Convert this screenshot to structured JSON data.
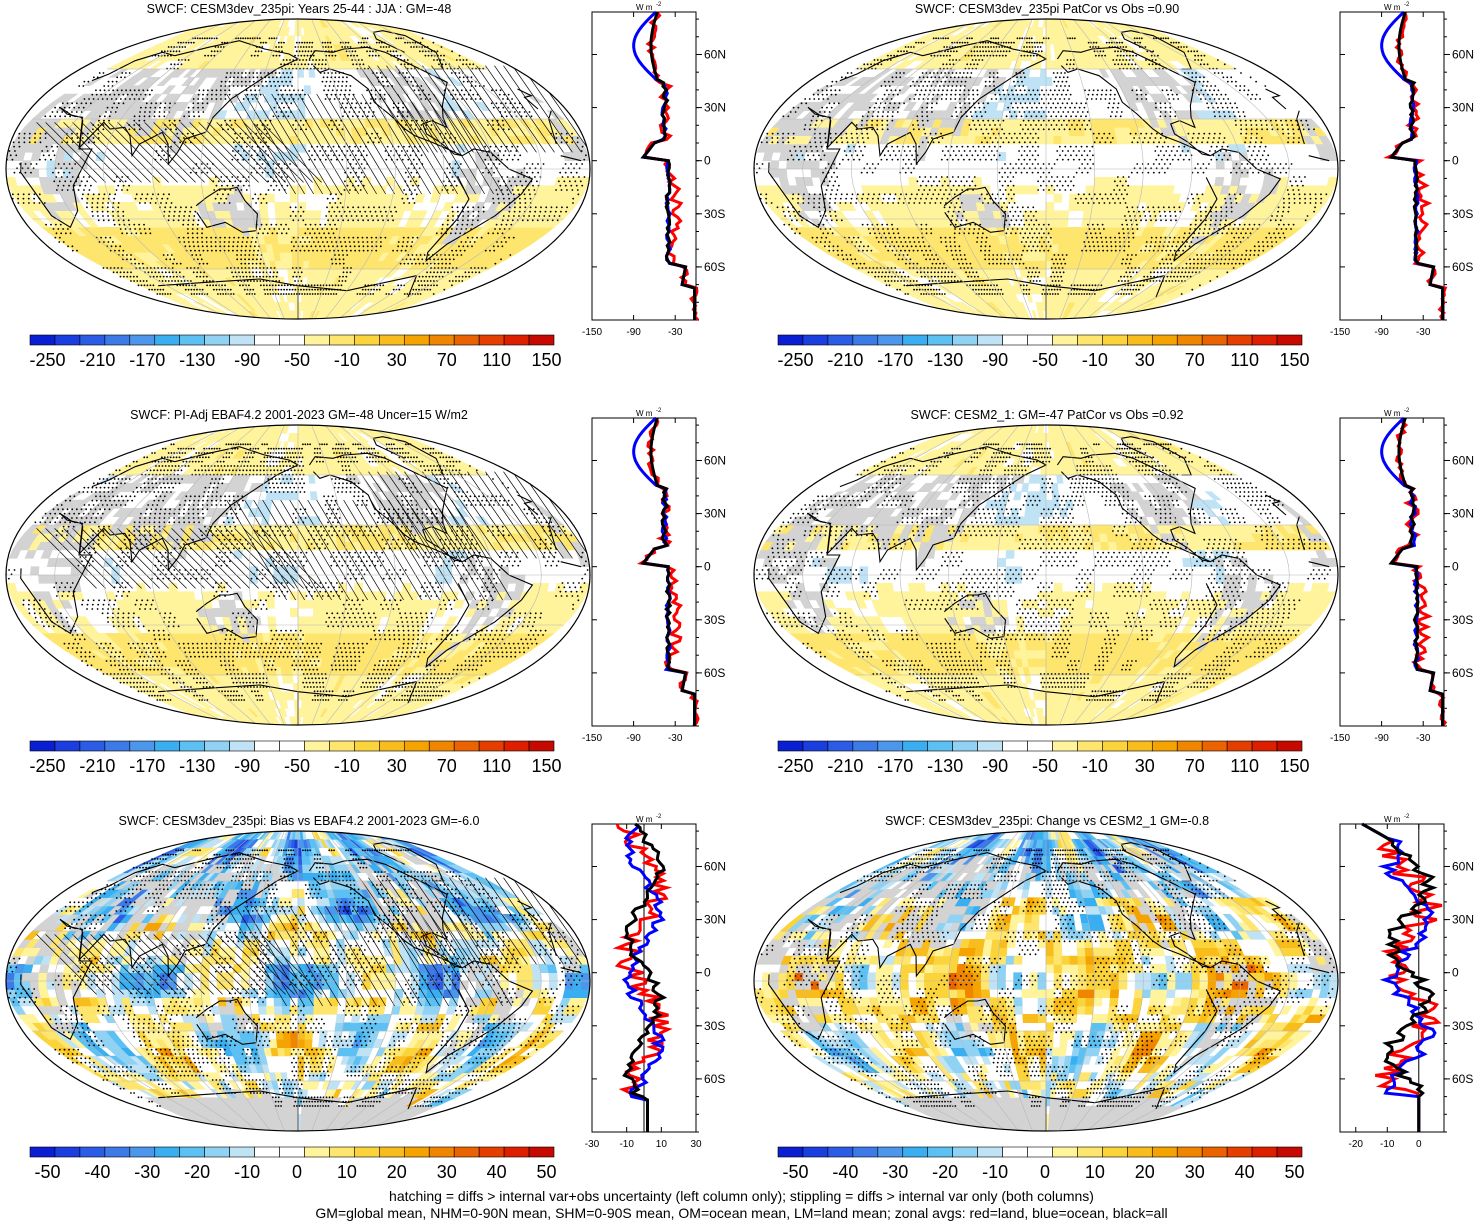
{
  "panels": [
    {
      "title": "SWCF: CESM3dev_235pi: Years 25-44 : JJA : GM=-48",
      "type": "abs",
      "hatch": true,
      "col": 0,
      "row": 0
    },
    {
      "title": "SWCF: CESM3dev_235pi PatCor vs Obs =0.90",
      "type": "abs",
      "hatch": false,
      "col": 1,
      "row": 0
    },
    {
      "title": "SWCF: PI-Adj EBAF4.2 2001-2023 GM=-48 Uncer=15 W/m2",
      "type": "abs",
      "hatch": true,
      "col": 0,
      "row": 1
    },
    {
      "title": "SWCF: CESM2_1: GM=-47 PatCor vs Obs =0.92",
      "type": "abs",
      "hatch": false,
      "col": 1,
      "row": 1
    },
    {
      "title": "SWCF: CESM3dev_235pi: Bias vs EBAF4.2 2001-2023 GM=-6.0",
      "type": "bias",
      "hatch": true,
      "col": 0,
      "row": 2
    },
    {
      "title": "SWCF: CESM3dev_235pi: Change vs CESM2_1 GM=-0.8",
      "type": "change",
      "hatch": false,
      "col": 1,
      "row": 2
    }
  ],
  "colorbars": {
    "abs": {
      "labels": [
        "-250",
        "-210",
        "-170",
        "-130",
        "-90",
        "-50",
        "-10",
        "30",
        "70",
        "110",
        "150"
      ]
    },
    "diff": {
      "labels": [
        "-50",
        "-40",
        "-30",
        "-20",
        "-10",
        "0",
        "10",
        "20",
        "30",
        "40",
        "50"
      ]
    },
    "colors": [
      "#0a1ed2",
      "#1b3ee0",
      "#2a5ce6",
      "#3c7ae8",
      "#4c96ec",
      "#39aef0",
      "#5cc0f2",
      "#8fd2f4",
      "#bfe3f5",
      "#ffffff",
      "#ffffff",
      "#fff39c",
      "#fde56e",
      "#fbd43c",
      "#f8bd1c",
      "#f5a300",
      "#f08600",
      "#ea6300",
      "#e43f00",
      "#dd1f00",
      "#c60a00"
    ]
  },
  "zonal": {
    "unit": "W m",
    "unit_exp": "-2",
    "lat_labels": [
      "60N",
      "30N",
      "0",
      "30S",
      "60S"
    ],
    "lat_values": [
      60,
      30,
      0,
      -30,
      -60
    ],
    "abs_axis": {
      "labels": [
        "-150",
        "-90",
        "-30"
      ],
      "values": [
        -150,
        -90,
        -30
      ],
      "range": [
        -150,
        0
      ]
    },
    "bias_axis": {
      "labels": [
        "-30",
        "-10",
        "10",
        "30"
      ],
      "values": [
        -30,
        -10,
        10,
        30
      ],
      "range": [
        -30,
        30
      ]
    },
    "change_axis": {
      "labels": [
        "-20",
        "-10",
        "0"
      ],
      "values": [
        -20,
        -10,
        0
      ],
      "range": [
        -25,
        8
      ]
    },
    "colors": {
      "land": "#ff0000",
      "ocean": "#0000ff",
      "all": "#000000"
    }
  },
  "footer": [
    "hatching = diffs > internal var+obs uncertainty (left column only); stippling = diffs > internal var only (both columns)",
    "GM=global mean, NHM=0-90N mean, SHM=0-90S mean, OM=ocean mean, LM=land mean; zonal avgs: red=land, blue=ocean, black=all"
  ]
}
